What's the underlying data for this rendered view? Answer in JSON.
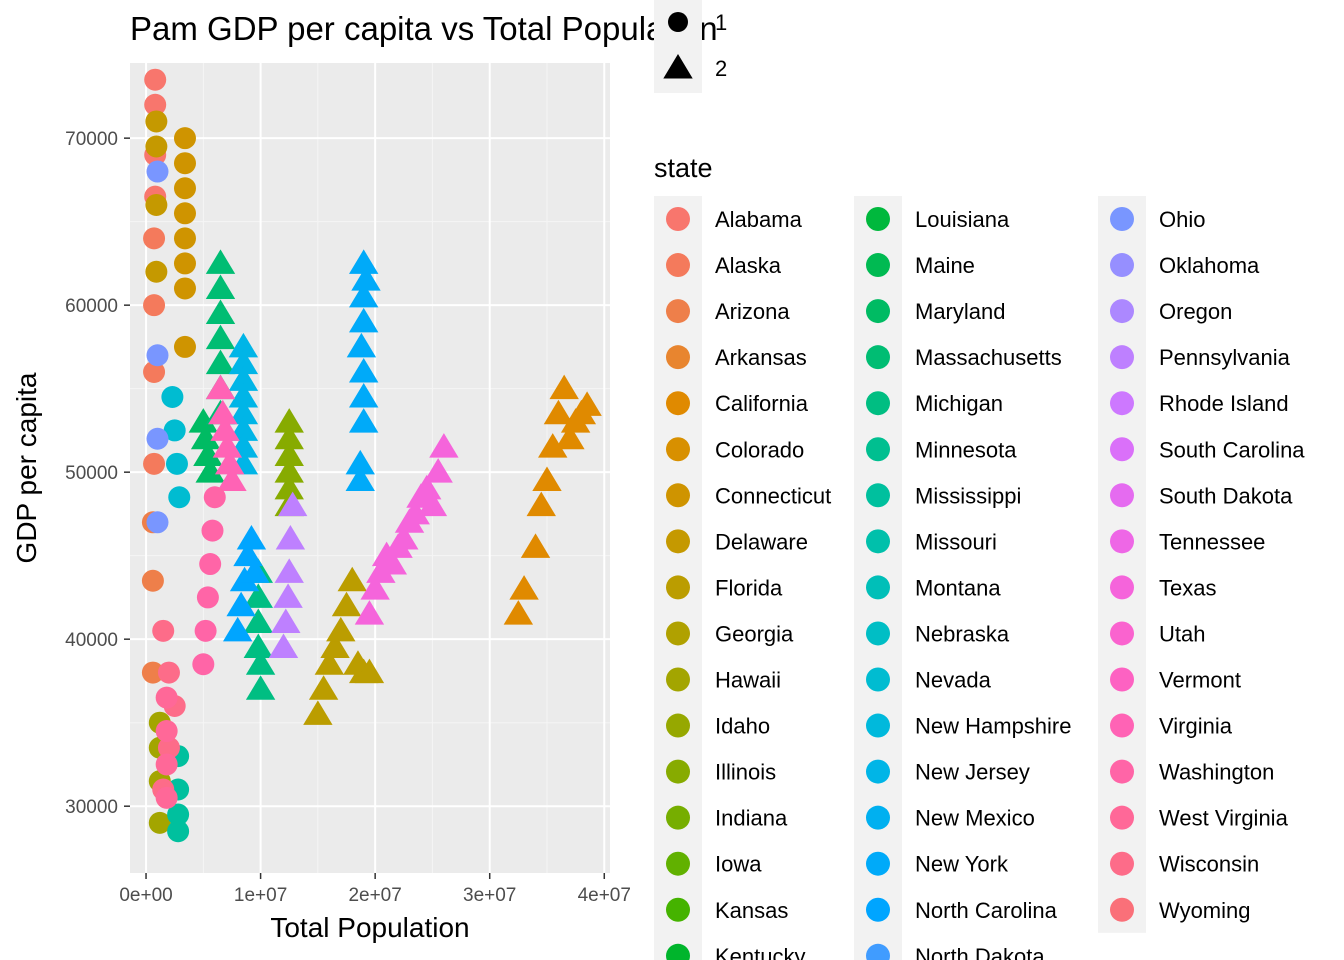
{
  "chart_data": {
    "type": "scatter",
    "title": "Pam GDP per capita vs Total Population",
    "xlabel": "Total Population",
    "ylabel": "GDP per capita",
    "xlim": [
      -1400000,
      40500000
    ],
    "ylim": [
      26000,
      74500
    ],
    "x_ticks": [
      0,
      10000000,
      20000000,
      30000000,
      40000000
    ],
    "x_tick_labels": [
      "0e+00",
      "1e+07",
      "2e+07",
      "3e+07",
      "4e+07"
    ],
    "y_ticks": [
      30000,
      40000,
      50000,
      60000,
      70000
    ],
    "y_tick_labels": [
      "30000",
      "40000",
      "50000",
      "60000",
      "70000"
    ],
    "grid": true,
    "shape_legend": {
      "title": "",
      "items": [
        {
          "label": "1",
          "shape": "circle"
        },
        {
          "label": "2",
          "shape": "triangle"
        }
      ]
    },
    "color_legend": {
      "title": "state",
      "placement": "right",
      "items": [
        {
          "label": "Alabama",
          "color": "#F8766D"
        },
        {
          "label": "Alaska",
          "color": "#F47A5C"
        },
        {
          "label": "Arizona",
          "color": "#EE7F4A"
        },
        {
          "label": "Arkansas",
          "color": "#E8852F"
        },
        {
          "label": "California",
          "color": "#E08A00"
        },
        {
          "label": "Colorado",
          "color": "#D89000"
        },
        {
          "label": "Connecticut",
          "color": "#CF9400"
        },
        {
          "label": "Delaware",
          "color": "#C59900"
        },
        {
          "label": "Florida",
          "color": "#BB9D00"
        },
        {
          "label": "Georgia",
          "color": "#B0A100"
        },
        {
          "label": "Hawaii",
          "color": "#A3A500"
        },
        {
          "label": "Idaho",
          "color": "#96A800"
        },
        {
          "label": "Illinois",
          "color": "#87AB00"
        },
        {
          "label": "Indiana",
          "color": "#76AE00"
        },
        {
          "label": "Iowa",
          "color": "#61B100"
        },
        {
          "label": "Kansas",
          "color": "#45B300"
        },
        {
          "label": "Kentucky",
          "color": "#00B52C"
        },
        {
          "label": "Louisiana",
          "color": "#00B83D"
        },
        {
          "label": "Maine",
          "color": "#00BA52"
        },
        {
          "label": "Maryland",
          "color": "#00BB63"
        },
        {
          "label": "Massachusetts",
          "color": "#00BD73"
        },
        {
          "label": "Michigan",
          "color": "#00BE82"
        },
        {
          "label": "Minnesota",
          "color": "#00BF90"
        },
        {
          "label": "Mississippi",
          "color": "#00C09E"
        },
        {
          "label": "Missouri",
          "color": "#00C0AB"
        },
        {
          "label": "Montana",
          "color": "#00BFB8"
        },
        {
          "label": "Nebraska",
          "color": "#00BEC5"
        },
        {
          "label": "Nevada",
          "color": "#00BCD1"
        },
        {
          "label": "New Hampshire",
          "color": "#00B9DC"
        },
        {
          "label": "New Jersey",
          "color": "#00B5E7"
        },
        {
          "label": "New Mexico",
          "color": "#00B0F0"
        },
        {
          "label": "New York",
          "color": "#00AAF9"
        },
        {
          "label": "North Carolina",
          "color": "#00A5FF"
        },
        {
          "label": "North Dakota",
          "color": "#409CFF"
        },
        {
          "label": "Ohio",
          "color": "#7996FF"
        },
        {
          "label": "Oklahoma",
          "color": "#968FFF"
        },
        {
          "label": "Oregon",
          "color": "#AC88FF"
        },
        {
          "label": "Pennsylvania",
          "color": "#BE80FF"
        },
        {
          "label": "Rhode Island",
          "color": "#CD78FF"
        },
        {
          "label": "South Carolina",
          "color": "#DA70F9"
        },
        {
          "label": "South Dakota",
          "color": "#E56BF0"
        },
        {
          "label": "Tennessee",
          "color": "#EE67E6"
        },
        {
          "label": "Texas",
          "color": "#F564DB"
        },
        {
          "label": "Utah",
          "color": "#FA63CF"
        },
        {
          "label": "Vermont",
          "color": "#FD62C2"
        },
        {
          "label": "Virginia",
          "color": "#FF63B5"
        },
        {
          "label": "Washington",
          "color": "#FF65A7"
        },
        {
          "label": "West Virginia",
          "color": "#FF6898"
        },
        {
          "label": "Wisconsin",
          "color": "#FD6C89"
        },
        {
          "label": "Wyoming",
          "color": "#FA7079"
        }
      ]
    },
    "series": [
      {
        "name": "Alabama",
        "shape": "circle",
        "x": [
          800000,
          800000,
          800000,
          800000
        ],
        "y": [
          73500,
          72000,
          69000,
          66500
        ]
      },
      {
        "name": "Alaska",
        "shape": "circle",
        "x": [
          700000,
          700000,
          700000,
          700000
        ],
        "y": [
          64000,
          60000,
          56000,
          50500
        ]
      },
      {
        "name": "Arizona",
        "shape": "circle",
        "x": [
          600000,
          600000,
          600000
        ],
        "y": [
          47000,
          43500,
          38000
        ]
      },
      {
        "name": "California",
        "shape": "triangle",
        "x": [
          32500000,
          33000000,
          34000000,
          34500000,
          35000000,
          35500000,
          36000000,
          36500000,
          37000000,
          37500000,
          38000000,
          38500000
        ],
        "y": [
          41500,
          43000,
          45500,
          48000,
          49500,
          51500,
          53500,
          55000,
          52000,
          53000,
          53500,
          54000
        ]
      },
      {
        "name": "Connecticut",
        "shape": "circle",
        "x": [
          3400000,
          3400000,
          3400000,
          3400000,
          3400000,
          3400000,
          3400000,
          3400000
        ],
        "y": [
          70000,
          68500,
          67000,
          65500,
          64000,
          62500,
          61000,
          57500
        ]
      },
      {
        "name": "Delaware",
        "shape": "circle",
        "x": [
          900000,
          900000,
          900000,
          900000
        ],
        "y": [
          71000,
          69500,
          66000,
          62000
        ]
      },
      {
        "name": "Florida",
        "shape": "triangle",
        "x": [
          15000000,
          15500000,
          16000000,
          16500000,
          17000000,
          17500000,
          18000000,
          18500000,
          19000000,
          19500000
        ],
        "y": [
          35500,
          37000,
          38500,
          39500,
          40500,
          42000,
          43500,
          38500,
          38000,
          38000
        ]
      },
      {
        "name": "Hawaii",
        "shape": "circle",
        "x": [
          1200000,
          1200000,
          1200000,
          1200000
        ],
        "y": [
          29000,
          31500,
          33500,
          35000
        ]
      },
      {
        "name": "Illinois",
        "shape": "triangle",
        "x": [
          12500000,
          12500000,
          12500000,
          12500000,
          12500000,
          12500000
        ],
        "y": [
          53000,
          52000,
          51000,
          50000,
          49000,
          48000
        ]
      },
      {
        "name": "Maryland",
        "shape": "triangle",
        "x": [
          5000000,
          5200000,
          5400000,
          5600000
        ],
        "y": [
          53000,
          52000,
          51000,
          50000
        ]
      },
      {
        "name": "Massachusetts",
        "shape": "triangle",
        "x": [
          6500000,
          6500000,
          6500000,
          6500000,
          6500000,
          6500000,
          6500000
        ],
        "y": [
          62500,
          61000,
          59500,
          58000,
          56500,
          55000,
          53500
        ]
      },
      {
        "name": "Michigan",
        "shape": "triangle",
        "x": [
          9800000,
          9800000,
          9800000,
          9800000,
          10000000,
          10000000
        ],
        "y": [
          44000,
          42500,
          41000,
          39500,
          38500,
          37000
        ]
      },
      {
        "name": "Mississippi",
        "shape": "circle",
        "x": [
          2800000,
          2800000,
          2800000,
          2800000
        ],
        "y": [
          28500,
          29500,
          31000,
          33000
        ]
      },
      {
        "name": "Nevada",
        "shape": "circle",
        "x": [
          2300000,
          2500000,
          2700000,
          2900000
        ],
        "y": [
          54500,
          52500,
          50500,
          48500
        ]
      },
      {
        "name": "New Jersey",
        "shape": "triangle",
        "x": [
          8500000,
          8500000,
          8500000,
          8500000,
          8500000,
          8500000,
          8500000,
          8500000
        ],
        "y": [
          57500,
          56500,
          55500,
          54500,
          53500,
          52500,
          51500,
          50500
        ]
      },
      {
        "name": "New York",
        "shape": "triangle",
        "x": [
          19000000,
          19000000,
          19000000,
          19000000,
          19000000,
          19000000,
          18700000,
          18700000,
          19200000,
          18800000
        ],
        "y": [
          62500,
          60500,
          59000,
          56000,
          54500,
          53000,
          50500,
          49500,
          61500,
          57500
        ]
      },
      {
        "name": "North Carolina",
        "shape": "triangle",
        "x": [
          8000000,
          8300000,
          8600000,
          8900000,
          9200000,
          9500000
        ],
        "y": [
          40500,
          42000,
          43500,
          45000,
          46000,
          44000
        ]
      },
      {
        "name": "Ohio",
        "shape": "circle",
        "x": [
          1000000,
          1000000,
          1000000,
          1000000
        ],
        "y": [
          68000,
          57000,
          52000,
          47000
        ]
      },
      {
        "name": "Pennsylvania",
        "shape": "triangle",
        "x": [
          12000000,
          12200000,
          12400000,
          12500000,
          12600000,
          12800000
        ],
        "y": [
          39500,
          41000,
          42500,
          44000,
          46000,
          48000
        ]
      },
      {
        "name": "Texas",
        "shape": "triangle",
        "x": [
          19500000,
          20000000,
          20500000,
          21000000,
          21500000,
          22000000,
          22500000,
          23000000,
          23500000,
          24000000,
          24500000,
          25000000,
          25500000,
          26000000
        ],
        "y": [
          41500,
          43000,
          44000,
          45000,
          44500,
          45500,
          46000,
          47000,
          47500,
          48500,
          49000,
          48000,
          50000,
          51500
        ]
      },
      {
        "name": "Virginia",
        "shape": "triangle",
        "x": [
          6500000,
          6700000,
          6900000,
          7100000,
          7300000,
          7500000
        ],
        "y": [
          55000,
          53500,
          52500,
          51500,
          50500,
          49500
        ]
      },
      {
        "name": "Washington",
        "shape": "circle",
        "x": [
          5000000,
          5200000,
          5400000,
          5600000,
          5800000,
          6000000
        ],
        "y": [
          38500,
          40500,
          42500,
          44500,
          46500,
          48500
        ]
      },
      {
        "name": "Wisconsin",
        "shape": "circle",
        "x": [
          1500000,
          2000000,
          2500000,
          2000000,
          1500000
        ],
        "y": [
          31000,
          33500,
          36000,
          38000,
          40500
        ]
      },
      {
        "name": "West Virginia",
        "shape": "circle",
        "x": [
          1800000,
          1800000,
          1800000,
          1800000
        ],
        "y": [
          30500,
          32500,
          34500,
          36500
        ]
      }
    ]
  }
}
